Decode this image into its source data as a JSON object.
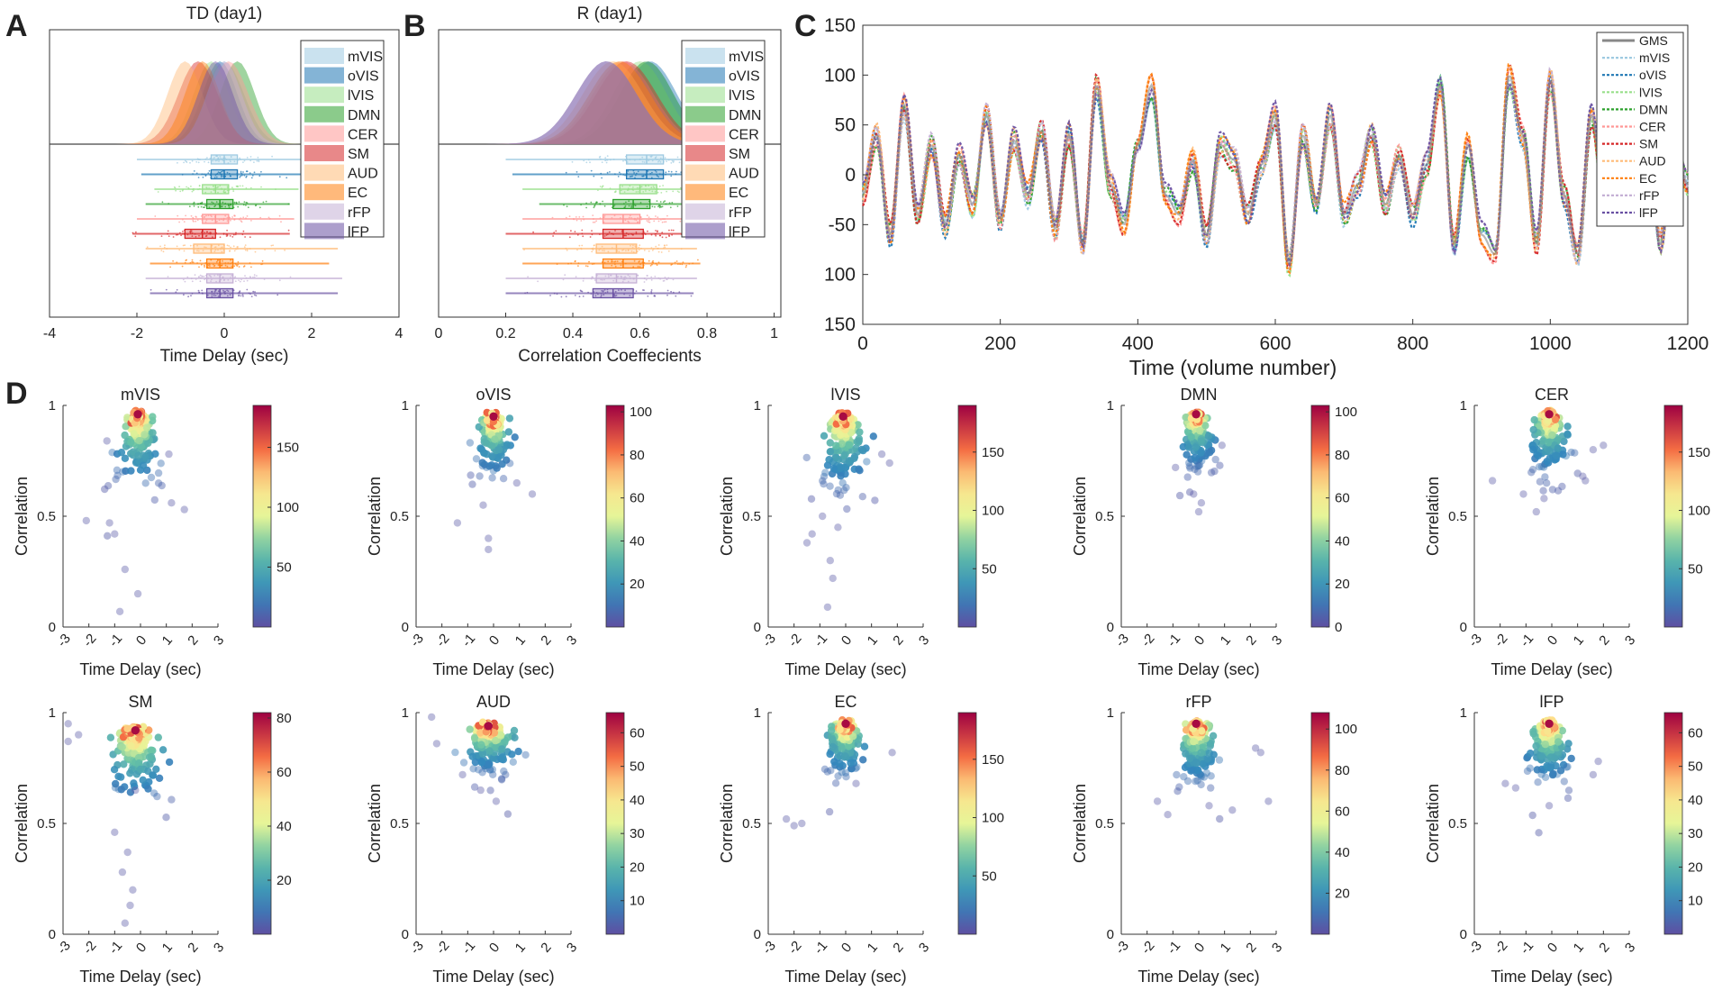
{
  "colors": {
    "mVIS": "#9ecae1",
    "oVIS": "#1f77b4",
    "lVIS": "#98df8a",
    "DMN": "#2ca02c",
    "CER": "#ff9896",
    "SM": "#d62728",
    "AUD": "#ffbb78",
    "EC": "#ff7f0e",
    "rFP": "#c5b0d5",
    "lFP": "#6a51a3",
    "GMS": "#888888"
  },
  "chart_data": [
    {
      "panel": "A",
      "type": "raincloud",
      "title": "TD (day1)",
      "xlabel": "Time Delay (sec)",
      "xlim": [
        -4,
        4
      ],
      "xticks": [
        "-4",
        "-2",
        "0",
        "2",
        "4"
      ],
      "legend": [
        "mVIS",
        "oVIS",
        "lVIS",
        "DMN",
        "CER",
        "SM",
        "AUD",
        "EC",
        "rFP",
        "lFP"
      ],
      "series": [
        {
          "name": "mVIS",
          "median": 0.0,
          "q1": -0.3,
          "q3": 0.3,
          "min": -2.0,
          "max": 2.2,
          "peak": 0.0,
          "sd": 0.45
        },
        {
          "name": "oVIS",
          "median": 0.0,
          "q1": -0.3,
          "q3": 0.3,
          "min": -1.9,
          "max": 2.3,
          "peak": -0.1,
          "sd": 0.4
        },
        {
          "name": "lVIS",
          "median": -0.2,
          "q1": -0.5,
          "q3": 0.1,
          "min": -1.6,
          "max": 1.7,
          "peak": -0.3,
          "sd": 0.4
        },
        {
          "name": "DMN",
          "median": -0.1,
          "q1": -0.4,
          "q3": 0.2,
          "min": -1.8,
          "max": 1.5,
          "peak": 0.3,
          "sd": 0.4
        },
        {
          "name": "CER",
          "median": -0.2,
          "q1": -0.5,
          "q3": 0.1,
          "min": -2.0,
          "max": 1.6,
          "peak": 0.1,
          "sd": 0.45
        },
        {
          "name": "SM",
          "median": -0.5,
          "q1": -0.9,
          "q3": -0.2,
          "min": -2.1,
          "max": 1.5,
          "peak": -0.6,
          "sd": 0.45
        },
        {
          "name": "AUD",
          "median": -0.3,
          "q1": -0.7,
          "q3": 0.0,
          "min": -1.8,
          "max": 2.6,
          "peak": -0.9,
          "sd": 0.4
        },
        {
          "name": "EC",
          "median": -0.1,
          "q1": -0.4,
          "q3": 0.2,
          "min": -1.7,
          "max": 2.4,
          "peak": -0.5,
          "sd": 0.4
        },
        {
          "name": "rFP",
          "median": -0.1,
          "q1": -0.4,
          "q3": 0.2,
          "min": -1.8,
          "max": 2.7,
          "peak": 0.0,
          "sd": 0.4
        },
        {
          "name": "lFP",
          "median": -0.1,
          "q1": -0.4,
          "q3": 0.2,
          "min": -1.7,
          "max": 2.6,
          "peak": -0.2,
          "sd": 0.4
        }
      ]
    },
    {
      "panel": "B",
      "type": "raincloud",
      "title": "R (day1)",
      "xlabel": "Correlation Coeffecients",
      "xlim": [
        0,
        1.02
      ],
      "xticks": [
        "0",
        "0.2",
        "0.4",
        "0.6",
        "0.8",
        "1"
      ],
      "legend": [
        "mVIS",
        "oVIS",
        "lVIS",
        "DMN",
        "CER",
        "SM",
        "AUD",
        "EC",
        "rFP",
        "lFP"
      ],
      "series": [
        {
          "name": "mVIS",
          "median": 0.62,
          "q1": 0.56,
          "q3": 0.67,
          "min": 0.2,
          "max": 0.8,
          "peak": 0.62,
          "sd": 0.08
        },
        {
          "name": "oVIS",
          "median": 0.62,
          "q1": 0.56,
          "q3": 0.67,
          "min": 0.22,
          "max": 0.79,
          "peak": 0.63,
          "sd": 0.08
        },
        {
          "name": "lVIS",
          "median": 0.6,
          "q1": 0.54,
          "q3": 0.65,
          "min": 0.25,
          "max": 0.78,
          "peak": 0.6,
          "sd": 0.08
        },
        {
          "name": "DMN",
          "median": 0.58,
          "q1": 0.52,
          "q3": 0.63,
          "min": 0.3,
          "max": 0.77,
          "peak": 0.62,
          "sd": 0.08
        },
        {
          "name": "CER",
          "median": 0.55,
          "q1": 0.49,
          "q3": 0.6,
          "min": 0.25,
          "max": 0.75,
          "peak": 0.55,
          "sd": 0.09
        },
        {
          "name": "SM",
          "median": 0.55,
          "q1": 0.49,
          "q3": 0.61,
          "min": 0.2,
          "max": 0.77,
          "peak": 0.56,
          "sd": 0.09
        },
        {
          "name": "AUD",
          "median": 0.53,
          "q1": 0.47,
          "q3": 0.59,
          "min": 0.25,
          "max": 0.77,
          "peak": 0.52,
          "sd": 0.09
        },
        {
          "name": "EC",
          "median": 0.55,
          "q1": 0.49,
          "q3": 0.61,
          "min": 0.25,
          "max": 0.78,
          "peak": 0.54,
          "sd": 0.09
        },
        {
          "name": "rFP",
          "median": 0.53,
          "q1": 0.47,
          "q3": 0.59,
          "min": 0.2,
          "max": 0.77,
          "peak": 0.5,
          "sd": 0.09
        },
        {
          "name": "lFP",
          "median": 0.52,
          "q1": 0.46,
          "q3": 0.58,
          "min": 0.2,
          "max": 0.76,
          "peak": 0.5,
          "sd": 0.09
        }
      ]
    },
    {
      "panel": "C",
      "type": "line",
      "xlabel": "Time (volume number)",
      "xlim": [
        0,
        1200
      ],
      "ylim": [
        -150,
        150
      ],
      "xticks": [
        "0",
        "200",
        "400",
        "600",
        "800",
        "1000",
        "1200"
      ],
      "yticks": [
        "150",
        "100",
        "50",
        "0",
        "-50",
        "100",
        "150"
      ],
      "legend": [
        "GMS",
        "mVIS",
        "oVIS",
        "lVIS",
        "DMN",
        "CER",
        "SM",
        "AUD",
        "EC",
        "rFP",
        "lFP"
      ],
      "gms": {
        "x": [
          0,
          20,
          40,
          60,
          80,
          100,
          120,
          140,
          160,
          180,
          200,
          220,
          240,
          260,
          280,
          300,
          320,
          340,
          360,
          380,
          400,
          420,
          440,
          460,
          480,
          500,
          520,
          540,
          560,
          580,
          600,
          620,
          640,
          660,
          680,
          700,
          720,
          740,
          760,
          780,
          800,
          820,
          840,
          860,
          880,
          900,
          920,
          940,
          960,
          980,
          1000,
          1020,
          1040,
          1060,
          1080,
          1100,
          1120,
          1140,
          1160,
          1180,
          1200
        ],
        "y": [
          -20,
          40,
          -60,
          70,
          -40,
          30,
          -50,
          20,
          -30,
          60,
          -45,
          35,
          -20,
          45,
          -55,
          40,
          -70,
          90,
          -10,
          -50,
          30,
          90,
          -20,
          -40,
          15,
          -60,
          30,
          15,
          -40,
          10,
          60,
          -90,
          40,
          -30,
          60,
          -40,
          -10,
          40,
          -30,
          20,
          -40,
          10,
          90,
          -70,
          30,
          -60,
          -80,
          100,
          40,
          -70,
          95,
          -20,
          -80,
          60,
          -40,
          50,
          -30,
          60,
          -70,
          40,
          -10
        ]
      },
      "deviation_amplitude": 14
    },
    {
      "panel": "D",
      "type": "hexbin",
      "xlabel": "Time Delay (sec)",
      "ylabel": "Correlation",
      "xlim": [
        -3,
        3
      ],
      "ylim": [
        0,
        1
      ],
      "xticks": [
        "-3",
        "-2",
        "-1",
        "0",
        "1",
        "2",
        "3"
      ],
      "yticks": [
        "0",
        "0.5",
        "1"
      ],
      "plots": [
        {
          "title": "mVIS",
          "cmax": 185,
          "cticks": [
            "50",
            "100",
            "150"
          ],
          "center": [
            -0.1,
            0.96
          ],
          "sx": 0.5,
          "sy": 0.12,
          "outliers": [
            [
              -2.1,
              0.48
            ],
            [
              -1.2,
              0.47
            ],
            [
              -1.0,
              0.42
            ],
            [
              -0.6,
              0.26
            ],
            [
              -0.8,
              0.07
            ],
            [
              -0.1,
              0.15
            ],
            [
              1.2,
              0.56
            ],
            [
              1.7,
              0.53
            ],
            [
              1.1,
              0.78
            ],
            [
              -1.3,
              0.84
            ]
          ]
        },
        {
          "title": "oVIS",
          "cmax": 103,
          "cticks": [
            "20",
            "40",
            "60",
            "80",
            "100"
          ],
          "center": [
            0.0,
            0.95
          ],
          "sx": 0.4,
          "sy": 0.1,
          "outliers": [
            [
              -1.4,
              0.47
            ],
            [
              -0.2,
              0.35
            ],
            [
              -0.2,
              0.4
            ],
            [
              0.9,
              0.65
            ],
            [
              1.5,
              0.6
            ],
            [
              -0.4,
              0.55
            ]
          ]
        },
        {
          "title": "lVIS",
          "cmax": 190,
          "cticks": [
            "50",
            "100",
            "150"
          ],
          "center": [
            -0.1,
            0.95
          ],
          "sx": 0.55,
          "sy": 0.12,
          "outliers": [
            [
              -1.5,
              0.38
            ],
            [
              -1.3,
              0.42
            ],
            [
              -0.6,
              0.3
            ],
            [
              -0.5,
              0.22
            ],
            [
              -0.7,
              0.09
            ],
            [
              -0.9,
              0.5
            ],
            [
              1.7,
              0.74
            ],
            [
              1.4,
              0.78
            ],
            [
              -0.3,
              0.45
            ]
          ]
        },
        {
          "title": "DMN",
          "cmax": 103,
          "cticks": [
            "0",
            "20",
            "40",
            "60",
            "80",
            "100"
          ],
          "center": [
            -0.1,
            0.96
          ],
          "sx": 0.4,
          "sy": 0.09,
          "outliers": [
            [
              -0.9,
              0.72
            ],
            [
              0.9,
              0.82
            ],
            [
              0.0,
              0.52
            ],
            [
              0.1,
              0.56
            ],
            [
              -0.2,
              0.6
            ]
          ]
        },
        {
          "title": "CER",
          "cmax": 190,
          "cticks": [
            "50",
            "100",
            "150"
          ],
          "center": [
            -0.1,
            0.96
          ],
          "sx": 0.45,
          "sy": 0.1,
          "outliers": [
            [
              -2.3,
              0.66
            ],
            [
              -0.6,
              0.52
            ],
            [
              1.6,
              0.8
            ],
            [
              2.0,
              0.82
            ],
            [
              1.2,
              0.68
            ],
            [
              1.3,
              0.66
            ],
            [
              -1.1,
              0.6
            ],
            [
              -0.3,
              0.58
            ]
          ]
        },
        {
          "title": "SM",
          "cmax": 82,
          "cticks": [
            "20",
            "40",
            "60",
            "80"
          ],
          "center": [
            -0.2,
            0.92
          ],
          "sx": 0.7,
          "sy": 0.12,
          "outliers": [
            [
              -2.8,
              0.95
            ],
            [
              -2.8,
              0.87
            ],
            [
              -2.4,
              0.9
            ],
            [
              -0.7,
              0.28
            ],
            [
              -0.5,
              0.37
            ],
            [
              -0.6,
              0.05
            ],
            [
              -0.4,
              0.13
            ],
            [
              -0.3,
              0.2
            ],
            [
              -1.0,
              0.46
            ],
            [
              -0.2,
              0.65
            ]
          ]
        },
        {
          "title": "AUD",
          "cmax": 66,
          "cticks": [
            "10",
            "20",
            "30",
            "40",
            "50",
            "60"
          ],
          "center": [
            -0.2,
            0.94
          ],
          "sx": 0.7,
          "sy": 0.08,
          "outliers": [
            [
              -2.4,
              0.98
            ],
            [
              -2.2,
              0.86
            ],
            [
              0.1,
              0.6
            ],
            [
              -0.5,
              0.65
            ],
            [
              -1.2,
              0.72
            ]
          ]
        },
        {
          "title": "EC",
          "cmax": 190,
          "cticks": [
            "50",
            "100",
            "150"
          ],
          "center": [
            0.0,
            0.95
          ],
          "sx": 0.45,
          "sy": 0.09,
          "outliers": [
            [
              -2.3,
              0.52
            ],
            [
              -2.0,
              0.49
            ],
            [
              -1.7,
              0.5
            ],
            [
              1.8,
              0.82
            ],
            [
              0.4,
              0.68
            ]
          ]
        },
        {
          "title": "rFP",
          "cmax": 108,
          "cticks": [
            "20",
            "40",
            "60",
            "80",
            "100"
          ],
          "center": [
            -0.1,
            0.95
          ],
          "sx": 0.5,
          "sy": 0.1,
          "outliers": [
            [
              -1.2,
              0.54
            ],
            [
              -1.6,
              0.6
            ],
            [
              2.2,
              0.84
            ],
            [
              2.4,
              0.82
            ],
            [
              2.7,
              0.6
            ],
            [
              1.3,
              0.56
            ],
            [
              0.4,
              0.58
            ]
          ]
        },
        {
          "title": "lFP",
          "cmax": 66,
          "cticks": [
            "10",
            "20",
            "30",
            "40",
            "50",
            "60"
          ],
          "center": [
            -0.1,
            0.95
          ],
          "sx": 0.5,
          "sy": 0.1,
          "outliers": [
            [
              -1.8,
              0.68
            ],
            [
              -1.4,
              0.66
            ],
            [
              1.8,
              0.78
            ],
            [
              1.6,
              0.72
            ],
            [
              -0.1,
              0.58
            ]
          ]
        }
      ]
    }
  ],
  "panel_labels": [
    "A",
    "B",
    "C",
    "D"
  ]
}
